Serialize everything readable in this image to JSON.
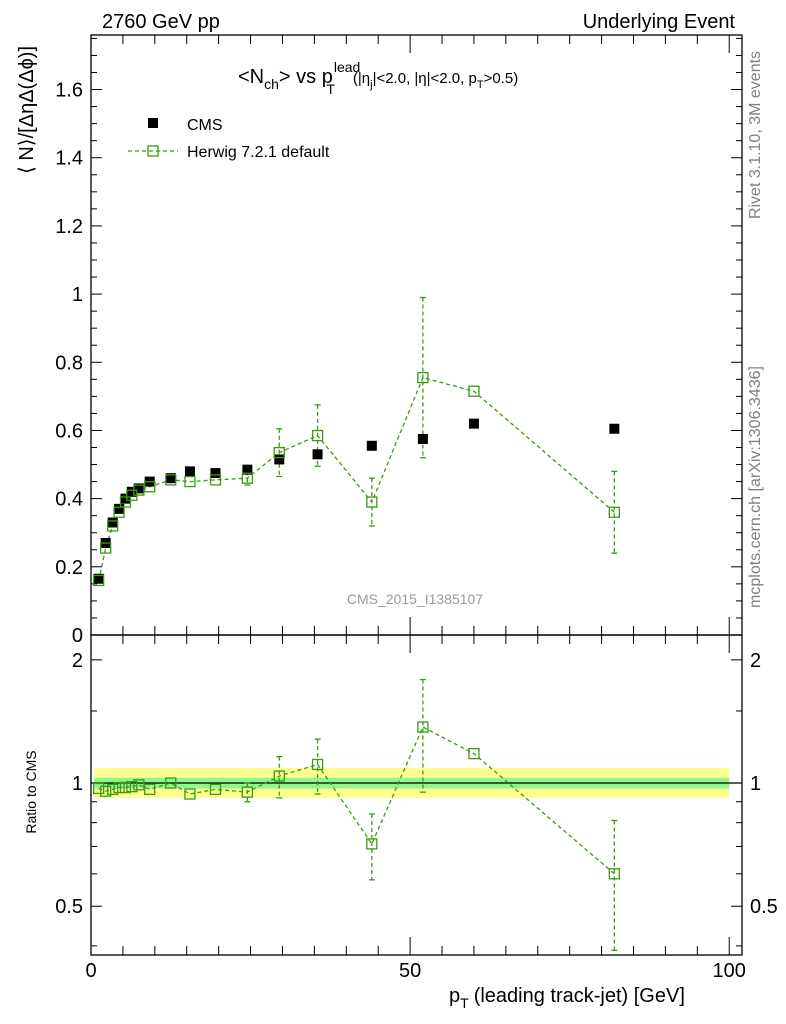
{
  "header": {
    "left": "2760 GeV pp",
    "right": "Underlying Event"
  },
  "side": {
    "top": "Rivet 3.1.10,  3M events",
    "bottom": "mcplots.cern.ch [arXiv:1306.3436]"
  },
  "plot_title": {
    "main": "<N",
    "main_sub": "ch",
    "main_mid": "> vs p",
    "main_sup": "lead",
    "main_sub2": "T",
    "cut_a": "(|η",
    "cut_a_sub": "j",
    "cut_b": "|<2.0, |η|<2.0, p",
    "cut_b_sub": "T",
    "cut_c": ">0.5)"
  },
  "watermark": "CMS_2015_I1385107",
  "axes": {
    "ylabel_main": "⟨ N⟩/[ΔηΔ(Δϕ)]",
    "ylabel_ratio": "Ratio to CMS",
    "xlabel": "(leading track-jet) [GeV]",
    "xlabel_p": "p",
    "xlabel_sub": "T",
    "main_ticks": [
      "0",
      "0.2",
      "0.4",
      "0.6",
      "0.8",
      "1",
      "1.2",
      "1.4",
      "1.6"
    ],
    "ratio_ticks": [
      "0.5",
      "1",
      "2"
    ],
    "x_ticks": [
      "0",
      "50",
      "100"
    ]
  },
  "legend": {
    "data_label": "CMS",
    "mc_label": "Herwig 7.2.1 default"
  },
  "colors": {
    "data": "#000000",
    "mc": "#3a9a14",
    "band_inner": "#90f790",
    "band_outer": "#ffff90"
  },
  "chart_data": [
    {
      "type": "scatter",
      "panel": "main",
      "xlim": [
        0,
        102
      ],
      "ylim": [
        0,
        1.76
      ],
      "series": [
        {
          "name": "CMS",
          "x": [
            1.2,
            2.3,
            3.4,
            4.4,
            5.4,
            6.4,
            7.5,
            9.2,
            12.5,
            15.5,
            19.5,
            24.5,
            29.5,
            35.5,
            44.0,
            52.0,
            60.0,
            82.0
          ],
          "y": [
            0.165,
            0.27,
            0.33,
            0.37,
            0.4,
            0.42,
            0.43,
            0.45,
            0.46,
            0.48,
            0.475,
            0.485,
            0.515,
            0.53,
            0.555,
            0.575,
            0.62,
            0.605
          ]
        },
        {
          "name": "Herwig 7.2.1 default",
          "x": [
            1.2,
            2.3,
            3.4,
            4.4,
            5.4,
            6.4,
            7.5,
            9.2,
            12.5,
            15.5,
            19.5,
            24.5,
            29.5,
            35.5,
            44.0,
            52.0,
            60.0,
            82.0
          ],
          "y": [
            0.16,
            0.255,
            0.32,
            0.36,
            0.39,
            0.41,
            0.425,
            0.435,
            0.455,
            0.45,
            0.455,
            0.46,
            0.535,
            0.585,
            0.39,
            0.755,
            0.715,
            0.36
          ],
          "yerr": [
            0.0,
            0.0,
            0.0,
            0.0,
            0.0,
            0.0,
            0.0,
            0.0,
            0.0,
            0.0,
            0.0,
            0.02,
            0.07,
            0.09,
            0.07,
            0.235,
            0.0,
            0.12
          ]
        }
      ]
    },
    {
      "type": "scatter",
      "panel": "ratio",
      "ylabel": "Ratio to CMS",
      "xlim": [
        0,
        102
      ],
      "ylim": [
        0.38,
        2.3
      ],
      "log_y": true,
      "band_inner": [
        0.97,
        1.03
      ],
      "band_outer": [
        0.92,
        1.09
      ],
      "series": [
        {
          "name": "Herwig 7.2.1 default",
          "x": [
            1.2,
            2.3,
            3.4,
            4.4,
            5.4,
            6.4,
            7.5,
            9.2,
            12.5,
            15.5,
            19.5,
            24.5,
            29.5,
            35.5,
            44.0,
            52.0,
            60.0,
            82.0
          ],
          "y": [
            0.97,
            0.955,
            0.965,
            0.975,
            0.975,
            0.98,
            0.99,
            0.965,
            1.0,
            0.94,
            0.965,
            0.95,
            1.04,
            1.11,
            0.71,
            1.37,
            1.18,
            0.6
          ],
          "yerr": [
            0.0,
            0.0,
            0.0,
            0.0,
            0.0,
            0.0,
            0.0,
            0.0,
            0.0,
            0.0,
            0.0,
            0.05,
            0.12,
            0.17,
            0.13,
            0.42,
            0.0,
            0.21
          ]
        }
      ]
    }
  ]
}
